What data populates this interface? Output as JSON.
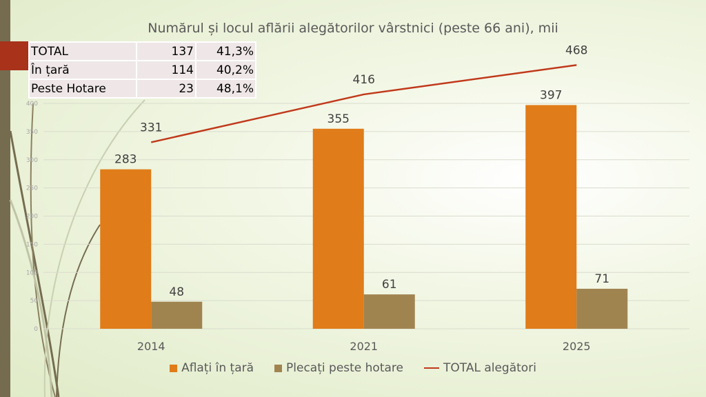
{
  "chart_data": {
    "type": "bar",
    "title": "Numărul și locul aflării alegătorilor vârstnici (peste 66 ani), mii",
    "categories": [
      "2014",
      "2021",
      "2025"
    ],
    "series": [
      {
        "name": "Aflați în țară",
        "type": "bar",
        "values": [
          283,
          355,
          397
        ],
        "color": "#e07c19"
      },
      {
        "name": "Plecați peste hotare",
        "type": "bar",
        "values": [
          48,
          61,
          71
        ],
        "color": "#a08450"
      },
      {
        "name": "TOTAL alegători",
        "type": "line",
        "values": [
          331,
          416,
          468
        ],
        "color": "#c0391b"
      }
    ],
    "ylim": [
      0,
      400
    ],
    "yticks": [
      0,
      50,
      100,
      150,
      200,
      250,
      300,
      350,
      400
    ],
    "grid": true,
    "legend": "bottom"
  },
  "table": {
    "rows": [
      {
        "label": "TOTAL",
        "value": "137",
        "percent": "41,3%"
      },
      {
        "label": "În țară",
        "value": "114",
        "percent": "40,2%"
      },
      {
        "label": "Peste Hotare",
        "value": "23",
        "percent": "48,1%"
      }
    ]
  },
  "colors": {
    "accent_square": "#a8321a",
    "side_bar": "#756c50"
  }
}
